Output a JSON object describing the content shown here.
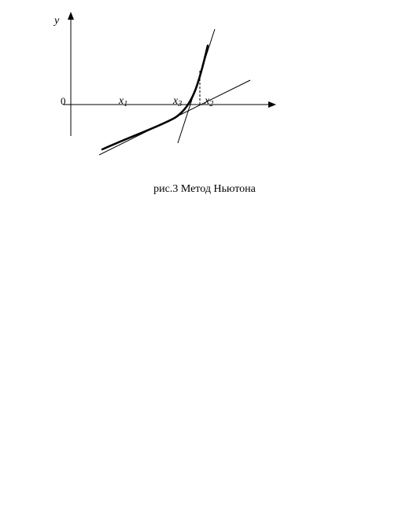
{
  "diagram": {
    "y_label": "y",
    "origin_label": "0",
    "x_points": [
      {
        "base": "x",
        "sub": "1"
      },
      {
        "base": "x",
        "sub": "3"
      },
      {
        "base": "x",
        "sub": "2"
      }
    ],
    "caption": "рис.3 Метод Ньютона",
    "colors": {
      "ink": "#000000",
      "background": "#ffffff"
    }
  }
}
